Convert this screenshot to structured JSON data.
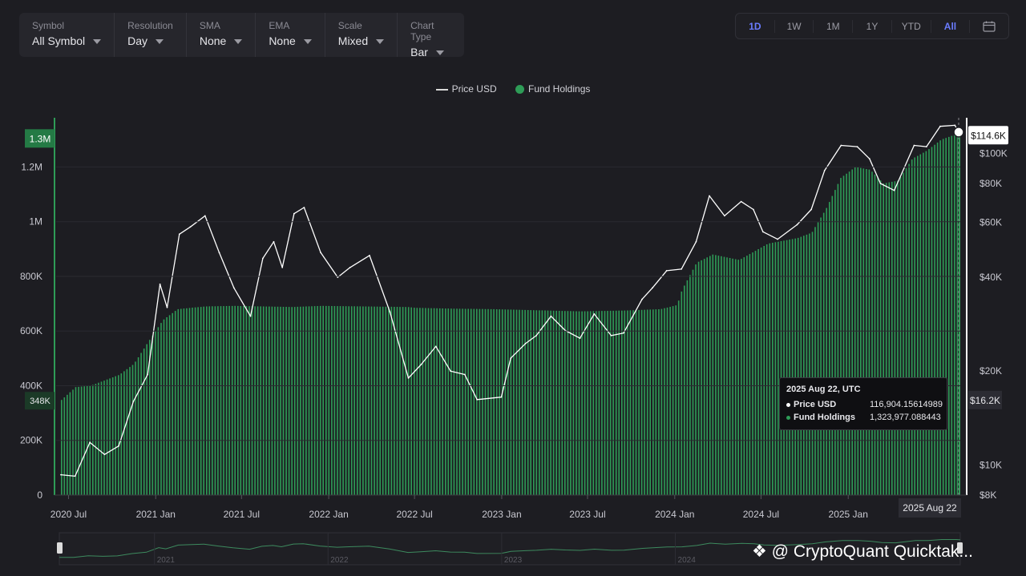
{
  "controls": [
    {
      "label": "Symbol",
      "value": "All Symbol"
    },
    {
      "label": "Resolution",
      "value": "Day"
    },
    {
      "label": "SMA",
      "value": "None"
    },
    {
      "label": "EMA",
      "value": "None"
    },
    {
      "label": "Scale",
      "value": "Mixed"
    },
    {
      "label": "Chart Type",
      "value": "Bar"
    }
  ],
  "ranges": [
    "1D",
    "1W",
    "1M",
    "1Y",
    "YTD",
    "All"
  ],
  "active_range": "All",
  "legend": {
    "price": "Price USD",
    "fund": "Fund Holdings"
  },
  "tooltip": {
    "date": "2025 Aug 22, UTC",
    "price_label": "Price USD",
    "price_value": "116,904.15614989",
    "fund_label": "Fund Holdings",
    "fund_value": "1,323,977.088443"
  },
  "watermark": "@ CryptoQuant Quicktak...",
  "colors": {
    "fund": "#2e9c57",
    "price": "#ffffff",
    "accent": "#6a7cff",
    "background": "#1d1d22"
  },
  "chart_data": {
    "type": "bar",
    "x_start": "2020-06-15",
    "x_end": "2025-08-22",
    "x_ticks": [
      "2020 Jul",
      "2021 Jan",
      "2021 Jul",
      "2022 Jan",
      "2022 Jul",
      "2023 Jan",
      "2023 Jul",
      "2024 Jan",
      "2024 Jul",
      "2025 Jan"
    ],
    "x_tick_dates": [
      "2020-07-01",
      "2021-01-01",
      "2021-07-01",
      "2022-01-01",
      "2022-07-01",
      "2023-01-01",
      "2023-07-01",
      "2024-01-01",
      "2024-07-01",
      "2025-01-01"
    ],
    "navigator_ticks": [
      "2021",
      "2022",
      "2023",
      "2024"
    ],
    "left_axis": {
      "ticks": [
        0,
        200000,
        400000,
        600000,
        800000,
        1000000,
        1200000
      ],
      "tick_labels": [
        "0",
        "200K",
        "400K",
        "600K",
        "800K",
        "1M",
        "1.2M"
      ],
      "ylim": [
        0,
        1380000
      ]
    },
    "right_axis": {
      "scale": "log",
      "ticks": [
        8000,
        10000,
        20000,
        40000,
        60000,
        80000,
        100000
      ],
      "tick_labels": [
        "$8K",
        "$10K",
        "$20K",
        "$40K",
        "$60K",
        "$80K",
        "$100K"
      ],
      "ylim": [
        8000,
        130000
      ]
    },
    "left_markers": [
      {
        "label": "1.3M",
        "value": 1300000
      },
      {
        "label": "348K",
        "value": 348000
      }
    ],
    "right_markers": [
      {
        "label": "$114.6K",
        "value": 114600
      },
      {
        "label": "$16.2K",
        "value": 16200
      }
    ],
    "cursor_label": "2025 Aug 22",
    "series": [
      {
        "name": "Fund Holdings",
        "type": "bar",
        "axis": "left",
        "points": [
          [
            "2020-06-15",
            348000
          ],
          [
            "2020-07-15",
            395000
          ],
          [
            "2020-08-15",
            400000
          ],
          [
            "2020-09-15",
            420000
          ],
          [
            "2020-10-15",
            440000
          ],
          [
            "2020-11-15",
            480000
          ],
          [
            "2020-12-15",
            560000
          ],
          [
            "2021-01-15",
            640000
          ],
          [
            "2021-02-15",
            680000
          ],
          [
            "2021-03-15",
            685000
          ],
          [
            "2021-04-15",
            690000
          ],
          [
            "2021-06-15",
            692000
          ],
          [
            "2021-08-15",
            690000
          ],
          [
            "2021-10-15",
            688000
          ],
          [
            "2021-12-15",
            692000
          ],
          [
            "2022-03-15",
            690000
          ],
          [
            "2022-06-15",
            688000
          ],
          [
            "2022-07-01",
            685000
          ],
          [
            "2022-09-15",
            682000
          ],
          [
            "2022-12-15",
            680000
          ],
          [
            "2023-03-15",
            676000
          ],
          [
            "2023-06-15",
            672000
          ],
          [
            "2023-09-15",
            675000
          ],
          [
            "2023-12-01",
            680000
          ],
          [
            "2024-01-05",
            695000
          ],
          [
            "2024-01-15",
            750000
          ],
          [
            "2024-02-15",
            850000
          ],
          [
            "2024-03-20",
            880000
          ],
          [
            "2024-05-15",
            860000
          ],
          [
            "2024-07-15",
            920000
          ],
          [
            "2024-09-15",
            940000
          ],
          [
            "2024-10-15",
            960000
          ],
          [
            "2024-11-15",
            1050000
          ],
          [
            "2024-12-15",
            1160000
          ],
          [
            "2025-01-15",
            1200000
          ],
          [
            "2025-02-15",
            1190000
          ],
          [
            "2025-03-15",
            1140000
          ],
          [
            "2025-04-15",
            1150000
          ],
          [
            "2025-05-15",
            1230000
          ],
          [
            "2025-06-15",
            1260000
          ],
          [
            "2025-07-15",
            1300000
          ],
          [
            "2025-08-22",
            1323977
          ]
        ]
      },
      {
        "name": "Price USD",
        "type": "line",
        "axis": "right",
        "points": [
          [
            "2020-06-15",
            9300
          ],
          [
            "2020-07-15",
            9200
          ],
          [
            "2020-08-15",
            11800
          ],
          [
            "2020-09-15",
            10800
          ],
          [
            "2020-10-15",
            11500
          ],
          [
            "2020-11-15",
            16000
          ],
          [
            "2020-12-15",
            19500
          ],
          [
            "2021-01-10",
            38000
          ],
          [
            "2021-01-25",
            32000
          ],
          [
            "2021-02-20",
            55000
          ],
          [
            "2021-03-15",
            58000
          ],
          [
            "2021-04-15",
            63000
          ],
          [
            "2021-05-15",
            48000
          ],
          [
            "2021-06-15",
            37000
          ],
          [
            "2021-07-20",
            30000
          ],
          [
            "2021-08-15",
            46000
          ],
          [
            "2021-09-07",
            52000
          ],
          [
            "2021-09-25",
            43000
          ],
          [
            "2021-10-20",
            64000
          ],
          [
            "2021-11-10",
            67000
          ],
          [
            "2021-12-15",
            48000
          ],
          [
            "2022-01-20",
            40000
          ],
          [
            "2022-02-15",
            43000
          ],
          [
            "2022-03-28",
            47000
          ],
          [
            "2022-05-10",
            31000
          ],
          [
            "2022-06-18",
            19000
          ],
          [
            "2022-07-15",
            21000
          ],
          [
            "2022-08-15",
            24000
          ],
          [
            "2022-09-15",
            20000
          ],
          [
            "2022-10-15",
            19500
          ],
          [
            "2022-11-10",
            16200
          ],
          [
            "2022-12-31",
            16500
          ],
          [
            "2023-01-20",
            22000
          ],
          [
            "2023-02-20",
            24500
          ],
          [
            "2023-03-15",
            26000
          ],
          [
            "2023-04-15",
            30000
          ],
          [
            "2023-05-15",
            27000
          ],
          [
            "2023-06-15",
            25500
          ],
          [
            "2023-07-15",
            30500
          ],
          [
            "2023-08-20",
            26000
          ],
          [
            "2023-09-15",
            26500
          ],
          [
            "2023-10-24",
            34000
          ],
          [
            "2023-11-15",
            37000
          ],
          [
            "2023-12-15",
            42000
          ],
          [
            "2024-01-15",
            42500
          ],
          [
            "2024-02-15",
            52000
          ],
          [
            "2024-03-14",
            73000
          ],
          [
            "2024-04-15",
            63000
          ],
          [
            "2024-05-20",
            70000
          ],
          [
            "2024-06-15",
            66000
          ],
          [
            "2024-07-05",
            56000
          ],
          [
            "2024-08-05",
            53000
          ],
          [
            "2024-09-15",
            59000
          ],
          [
            "2024-10-15",
            66000
          ],
          [
            "2024-11-12",
            88000
          ],
          [
            "2024-12-17",
            106000
          ],
          [
            "2025-01-20",
            105000
          ],
          [
            "2025-02-15",
            96000
          ],
          [
            "2025-03-10",
            80000
          ],
          [
            "2025-04-08",
            76000
          ],
          [
            "2025-05-20",
            106000
          ],
          [
            "2025-06-15",
            105000
          ],
          [
            "2025-07-14",
            122000
          ],
          [
            "2025-08-14",
            123000
          ],
          [
            "2025-08-22",
            116904
          ]
        ]
      }
    ]
  }
}
